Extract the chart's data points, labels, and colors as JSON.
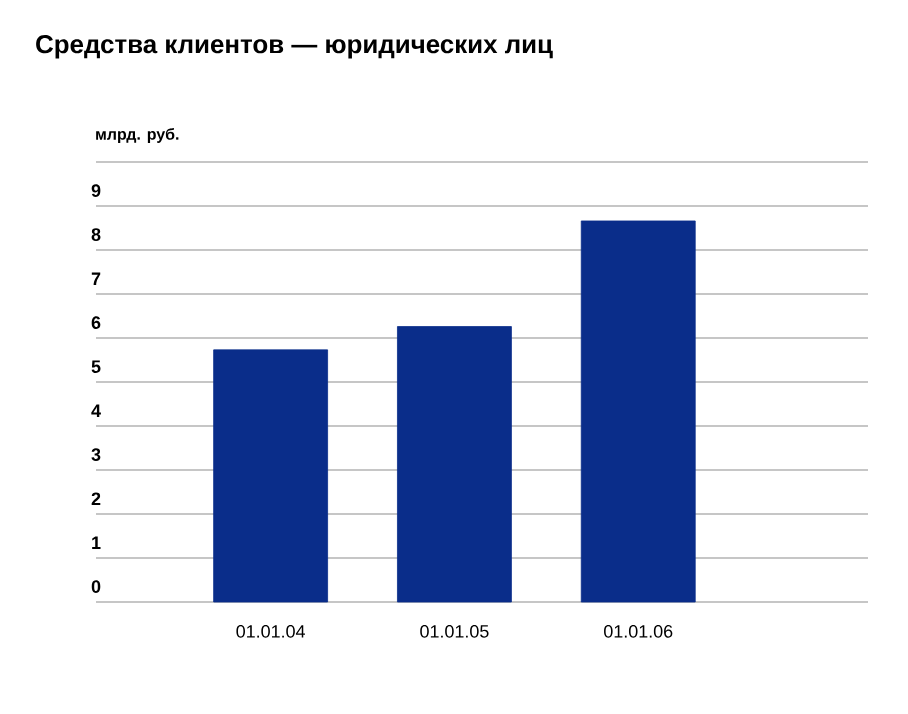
{
  "chart_data": {
    "type": "bar",
    "title": "Средства клиентов — юридических лиц",
    "ylabel": "млрд. руб.",
    "categories": [
      "01.01.04",
      "01.01.05",
      "01.01.06"
    ],
    "values": [
      5.73,
      6.26,
      8.66
    ],
    "color": "#0a2d8a",
    "ylim": [
      0,
      10
    ],
    "yticks": [
      0,
      1,
      2,
      3,
      4,
      5,
      6,
      7,
      8,
      9,
      {
        "value": 10,
        "label": null
      }
    ],
    "grid": "y"
  }
}
